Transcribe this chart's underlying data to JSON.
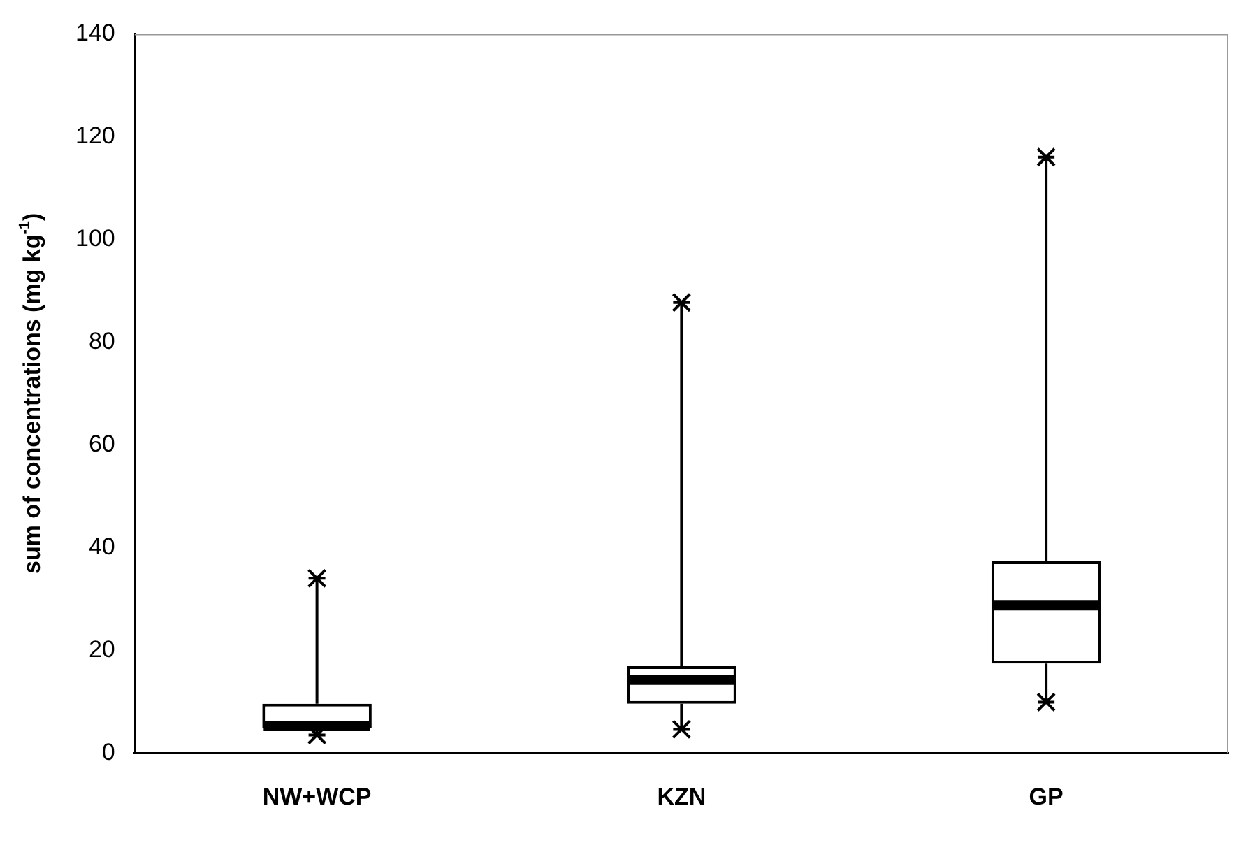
{
  "chart_data": {
    "type": "box",
    "ylabel": "sum of concentrations (mg kg$^{-1}$)",
    "categories": [
      "NW+WCP",
      "KZN",
      "GP"
    ],
    "boxes": [
      {
        "low": 3.5,
        "q1": 4.8,
        "median": 5.2,
        "q3": 9.6,
        "high": 34
      },
      {
        "low": 4.6,
        "q1": 9.6,
        "median": 14.2,
        "q3": 16.9,
        "high": 87.7
      },
      {
        "low": 9.9,
        "q1": 17.4,
        "median": 28.7,
        "q3": 37.3,
        "high": 116
      }
    ],
    "marker": "cross",
    "ylim": [
      0,
      140
    ],
    "yticks": [
      0,
      20,
      40,
      60,
      80,
      100,
      120,
      140
    ]
  }
}
